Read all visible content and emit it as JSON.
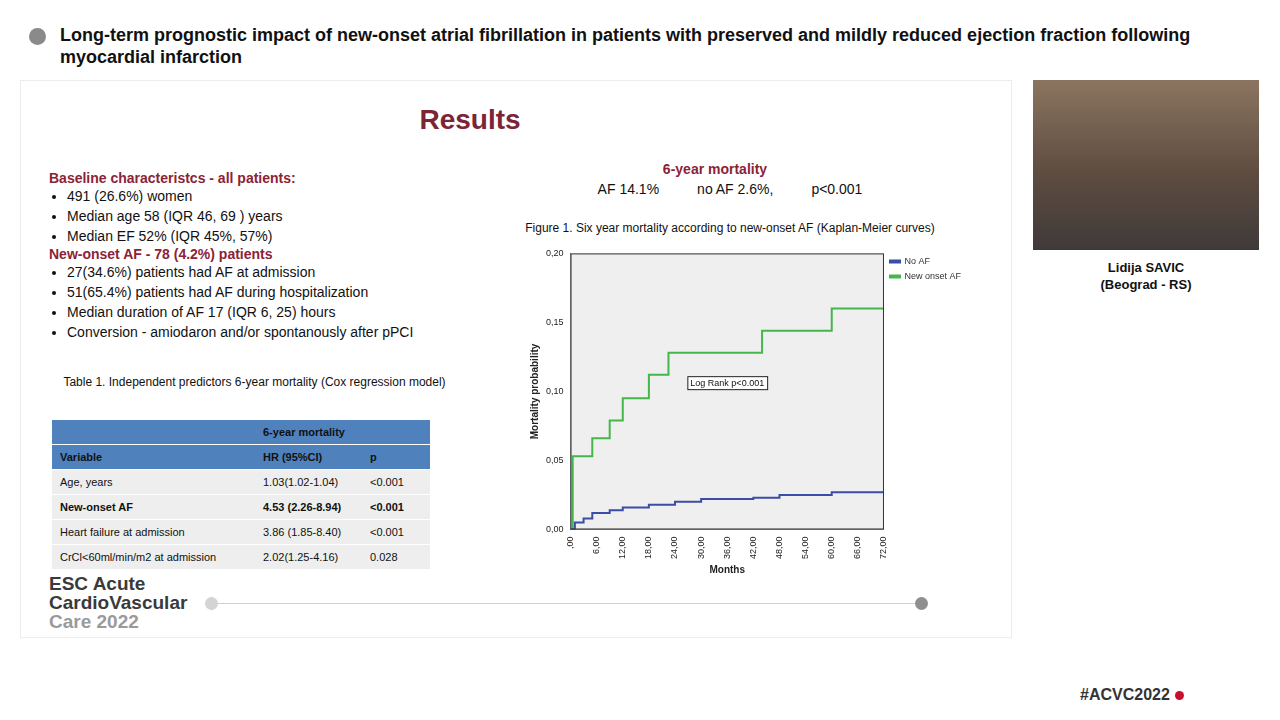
{
  "header": {
    "title": "Long-term prognostic impact of new-onset atrial fibrillation in patients with preserved and mildly reduced ejection fraction following myocardial infarction"
  },
  "speaker": {
    "name": "Lidija SAVIC",
    "location": "(Beograd - RS)"
  },
  "slide": {
    "title": "Results",
    "baseline_heading": "Baseline characteristcs -  all  patients:",
    "baseline_items": [
      "491 (26.6%) women",
      "Median age 58 (IQR 46, 69 ) years",
      "Median EF 52% (IQR 45%, 57%)"
    ],
    "af_heading": "New-onset AF - 78 (4.2%) patients",
    "af_items": [
      "27(34.6%) patients had AF at admission",
      "51(65.4%) patients had AF during hospitalization",
      "Median duration of AF 17 (IQR 6, 25) hours",
      "Conversion - amiodaron and/or spontanously after pPCI"
    ],
    "table": {
      "caption": "Table 1. Independent predictors 6-year mortality  (Cox regression model)",
      "group_header": "6-year mortality",
      "columns": [
        "Variable",
        "HR (95%CI)",
        "p"
      ],
      "rows": [
        [
          "Age, years",
          "1.03(1.02-1.04)",
          "<0.001"
        ],
        [
          "New-onset AF",
          "4.53 (2.26-8.94)",
          "<0.001"
        ],
        [
          "Heart failure at admission",
          "3.86 (1.85-8.40)",
          "<0.001"
        ],
        [
          "CrCl<60ml/min/m2 at admission",
          "2.02(1.25-4.16)",
          "0.028"
        ]
      ]
    },
    "mortality_heading": "6-year mortality",
    "mortality_summary": [
      "AF 14.1%",
      "no AF 2.6%,",
      "p<0.001"
    ],
    "figure_caption": "Figure 1.  Six year mortality according to new-onset AF (Kaplan-Meier curves)"
  },
  "footer": {
    "event": [
      "ESC Acute",
      "CardioVascular",
      "Care 2022"
    ],
    "hashtag": "#ACVC2022"
  },
  "chart_data": {
    "type": "line",
    "x_label": "Months",
    "y_label": "Mortality probability",
    "annotation": "Log Rank p<0.001",
    "series": [
      {
        "name": "No AF",
        "color": "#3b4da6",
        "line_style": "step",
        "x": [
          0,
          1,
          3,
          5,
          9,
          12,
          18,
          24,
          30,
          42,
          48,
          60,
          72
        ],
        "values": [
          0,
          0.005,
          0.008,
          0.012,
          0.014,
          0.016,
          0.018,
          0.02,
          0.022,
          0.023,
          0.025,
          0.027,
          0.028
        ]
      },
      {
        "name": "New onset AF",
        "color": "#45b649",
        "line_style": "step",
        "x": [
          0,
          0.5,
          5,
          9,
          12,
          18,
          22.5,
          44,
          60,
          72
        ],
        "values": [
          0,
          0.053,
          0.066,
          0.079,
          0.095,
          0.112,
          0.128,
          0.144,
          0.16,
          0.16
        ]
      }
    ],
    "xlim": [
      0,
      72
    ],
    "xticks": [
      {
        "value": 0,
        "label": ",00"
      },
      {
        "value": 6,
        "label": "6,00"
      },
      {
        "value": 12,
        "label": "12,00"
      },
      {
        "value": 18,
        "label": "18,00"
      },
      {
        "value": 24,
        "label": "24,00"
      },
      {
        "value": 30,
        "label": "30,00"
      },
      {
        "value": 36,
        "label": "36,00"
      },
      {
        "value": 42,
        "label": "42,00"
      },
      {
        "value": 48,
        "label": "48,00"
      },
      {
        "value": 54,
        "label": "54,00"
      },
      {
        "value": 60,
        "label": "60,00"
      },
      {
        "value": 66,
        "label": "66,00"
      },
      {
        "value": 72,
        "label": "72,00"
      }
    ],
    "ylim": [
      0,
      0.2
    ],
    "yticks": [
      {
        "value": 0,
        "label": "0,00"
      },
      {
        "value": 0.05,
        "label": "0,05"
      },
      {
        "value": 0.1,
        "label": "0,10"
      },
      {
        "value": 0.15,
        "label": "0,15"
      },
      {
        "value": 0.2,
        "label": "0,20"
      }
    ],
    "grid": false,
    "legend": "right"
  }
}
